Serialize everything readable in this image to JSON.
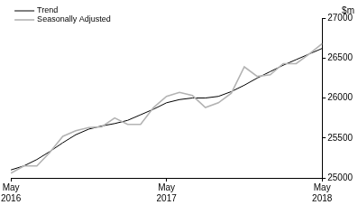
{
  "chart_data": {
    "type": "line",
    "y_label": "$m",
    "categories": [
      "May 2016",
      null,
      null,
      null,
      null,
      null,
      null,
      null,
      null,
      null,
      null,
      null,
      "May 2017",
      null,
      null,
      null,
      null,
      null,
      null,
      null,
      null,
      null,
      null,
      null,
      "May 2018"
    ],
    "series": [
      {
        "name": "Trend",
        "color": "#000000",
        "values": [
          25100,
          25150,
          25230,
          25330,
          25440,
          25540,
          25610,
          25650,
          25680,
          25720,
          25790,
          25860,
          25940,
          25980,
          26000,
          26000,
          26020,
          26080,
          26160,
          26250,
          26330,
          26410,
          26480,
          26550,
          26620
        ]
      },
      {
        "name": "Seasonally Adjusted",
        "color": "#b3b3b3",
        "values": [
          25060,
          25150,
          25150,
          25320,
          25520,
          25590,
          25630,
          25640,
          25750,
          25670,
          25670,
          25880,
          26020,
          26070,
          26030,
          25880,
          25940,
          26060,
          26390,
          26270,
          26290,
          26430,
          26430,
          26550,
          26680
        ]
      }
    ],
    "ylim": [
      25000,
      27000
    ],
    "yticks": [
      25000,
      25500,
      26000,
      26500,
      27000
    ],
    "grid": false,
    "legend": "upper left"
  }
}
